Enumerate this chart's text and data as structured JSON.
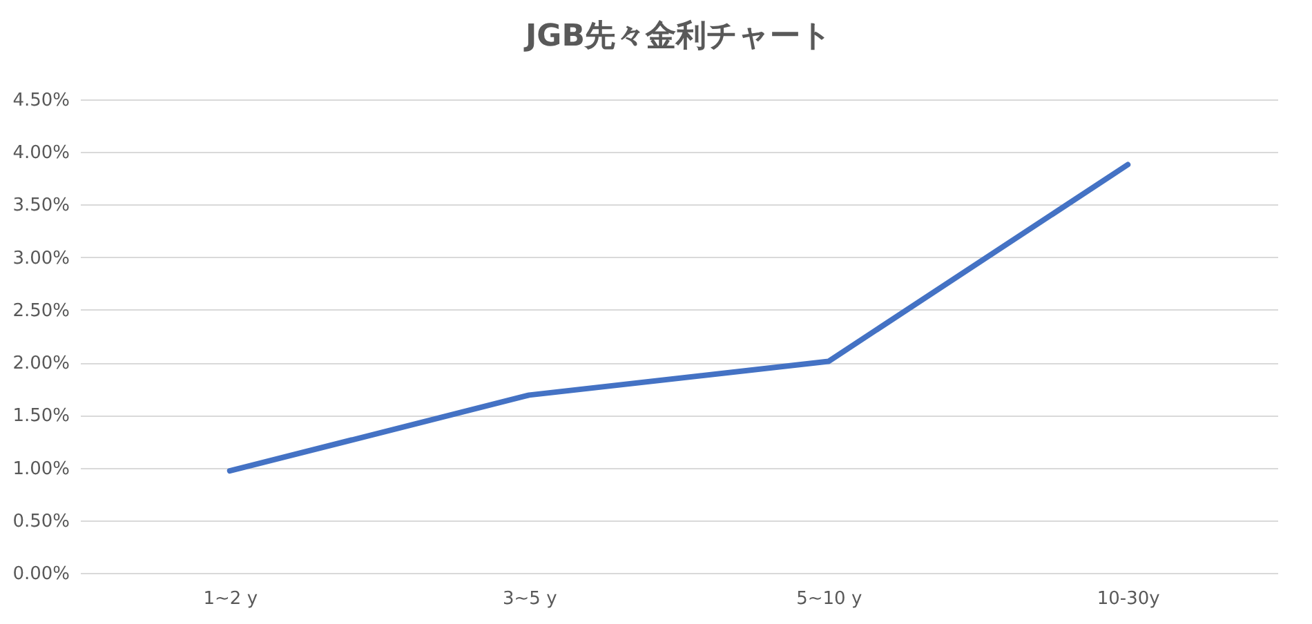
{
  "chart_data": {
    "type": "line",
    "title": "JGB先々金利チャート",
    "categories": [
      "1~2 y",
      "3~5 y",
      "5~10 y",
      "10-30y"
    ],
    "series": [
      {
        "color": "#4472c4",
        "values": [
          0.97,
          1.69,
          2.01,
          3.88
        ]
      }
    ],
    "ylim": [
      0,
      4.5
    ],
    "yticks": [
      {
        "value": 0,
        "label": "0.00%"
      },
      {
        "value": 0.5,
        "label": "0.50%"
      },
      {
        "value": 1,
        "label": "1.00%"
      },
      {
        "value": 1.5,
        "label": "1.50%"
      },
      {
        "value": 2,
        "label": "2.00%"
      },
      {
        "value": 2.5,
        "label": "2.50%"
      },
      {
        "value": 3,
        "label": "3.00%"
      },
      {
        "value": 3.5,
        "label": "3.50%"
      },
      {
        "value": 4,
        "label": "4.00%"
      },
      {
        "value": 4.5,
        "label": "4.50%"
      }
    ],
    "grid": "y",
    "marker": "none",
    "line_style": "solid"
  }
}
